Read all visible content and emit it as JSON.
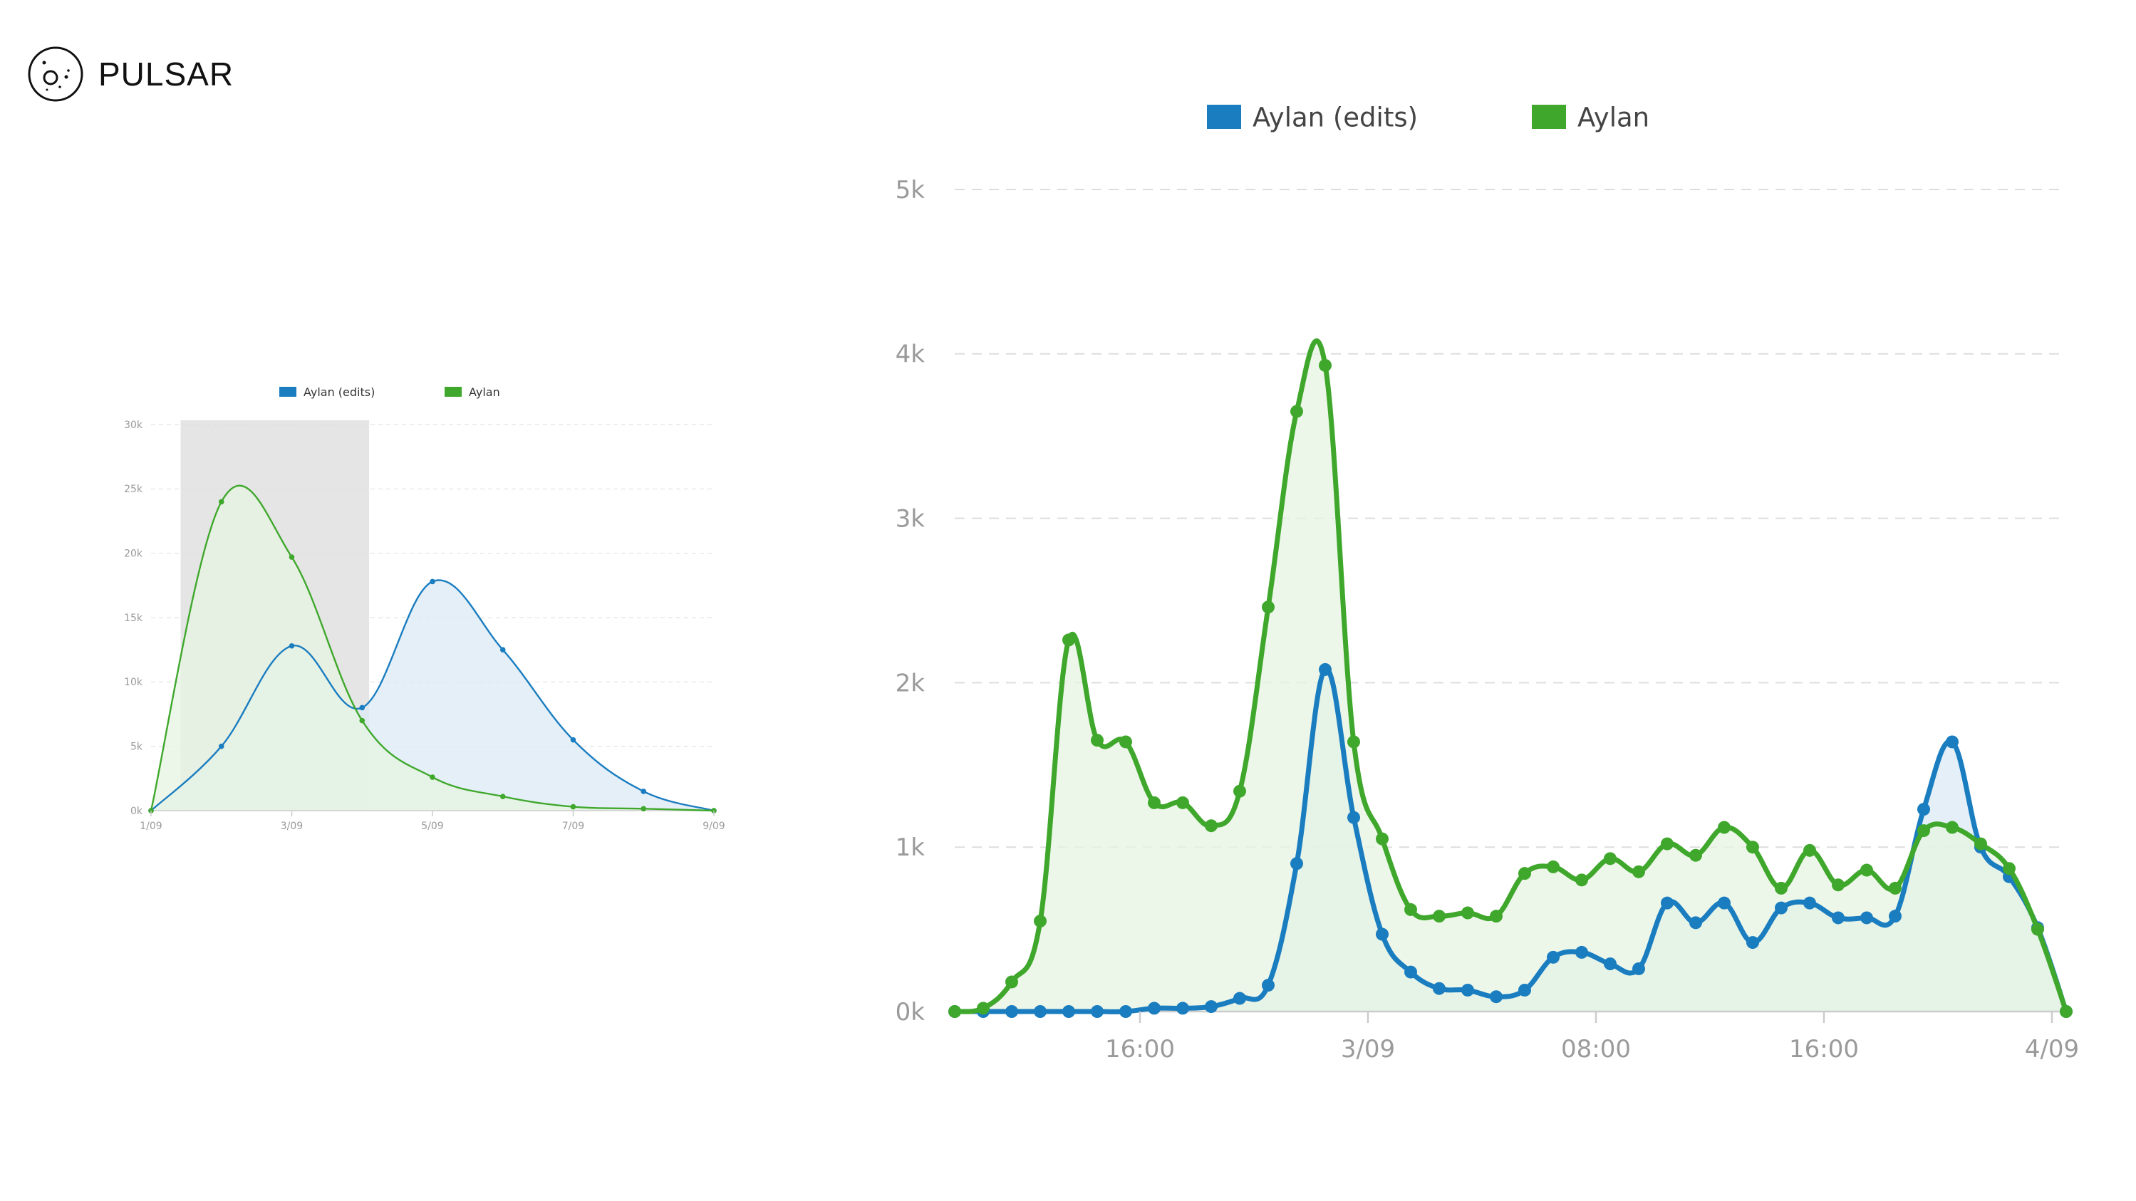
{
  "brand": {
    "name": "PULSAR",
    "icon": "pulsar-orbit-logo-icon"
  },
  "colors": {
    "edits": "#1a7dc0",
    "aylan": "#3fa82c",
    "edits_fill": "#dbe9f4",
    "aylan_fill": "#e7f4e1",
    "selection": "#e0e0e0",
    "grid": "#dddddd",
    "axis": "#cccccc",
    "tick_text": "#9a9a9a"
  },
  "chart_data": [
    {
      "id": "overview",
      "type": "area",
      "title": "",
      "xlabel": "",
      "ylabel": "",
      "grid": true,
      "legend": "top-center",
      "x_ticks": [
        "1/09",
        "3/09",
        "5/09",
        "7/09",
        "9/09"
      ],
      "y_ticks": [
        "0k",
        "5k",
        "10k",
        "15k",
        "20k",
        "25k",
        "30k"
      ],
      "ylim": [
        0,
        30000
      ],
      "xlim": [
        0,
        8
      ],
      "x": [
        0,
        1,
        2,
        3,
        4,
        5,
        6,
        7,
        8
      ],
      "selection_range": [
        0.42,
        3.1
      ],
      "series": [
        {
          "name": "Aylan (edits)",
          "color": "#1a7dc0",
          "values": [
            0,
            5000,
            12800,
            8000,
            17800,
            12500,
            5500,
            1500,
            0
          ]
        },
        {
          "name": "Aylan",
          "color": "#3fa82c",
          "values": [
            0,
            24000,
            19700,
            7000,
            2600,
            1100,
            300,
            150,
            0
          ]
        }
      ]
    },
    {
      "id": "detail",
      "type": "area",
      "title": "",
      "xlabel": "",
      "ylabel": "",
      "grid": true,
      "legend": "top-center",
      "x_ticks": [
        "16:00",
        "3/09",
        "08:00",
        "16:00",
        "4/09"
      ],
      "x_tick_positions": [
        6.5,
        14.5,
        22.5,
        30.5,
        38.5
      ],
      "y_ticks": [
        "0k",
        "1k",
        "2k",
        "3k",
        "4k",
        "5k"
      ],
      "ylim": [
        0,
        5000
      ],
      "xlim": [
        0,
        39
      ],
      "x": [
        0,
        1,
        2,
        3,
        4,
        5,
        6,
        7,
        8,
        9,
        10,
        11,
        12,
        13,
        14,
        15,
        16,
        17,
        18,
        19,
        20,
        21,
        22,
        23,
        24,
        25,
        26,
        27,
        28,
        29,
        30,
        31,
        32,
        33,
        34,
        35,
        36,
        37,
        38,
        39
      ],
      "series": [
        {
          "name": "Aylan (edits)",
          "color": "#1a7dc0",
          "values": [
            0,
            0,
            0,
            0,
            0,
            0,
            0,
            20,
            20,
            30,
            80,
            160,
            900,
            2080,
            1180,
            470,
            240,
            140,
            130,
            90,
            130,
            330,
            360,
            290,
            260,
            660,
            540,
            660,
            420,
            630,
            660,
            570,
            570,
            580,
            1230,
            1640,
            1000,
            820,
            510,
            0
          ]
        },
        {
          "name": "Aylan",
          "color": "#3fa82c",
          "values": [
            0,
            20,
            180,
            550,
            2260,
            1650,
            1640,
            1270,
            1270,
            1130,
            1340,
            2460,
            3650,
            3930,
            1640,
            1050,
            620,
            580,
            600,
            580,
            840,
            880,
            800,
            930,
            850,
            1020,
            950,
            1120,
            1000,
            750,
            980,
            770,
            860,
            750,
            1100,
            1120,
            1020,
            870,
            500,
            0
          ]
        }
      ]
    }
  ]
}
